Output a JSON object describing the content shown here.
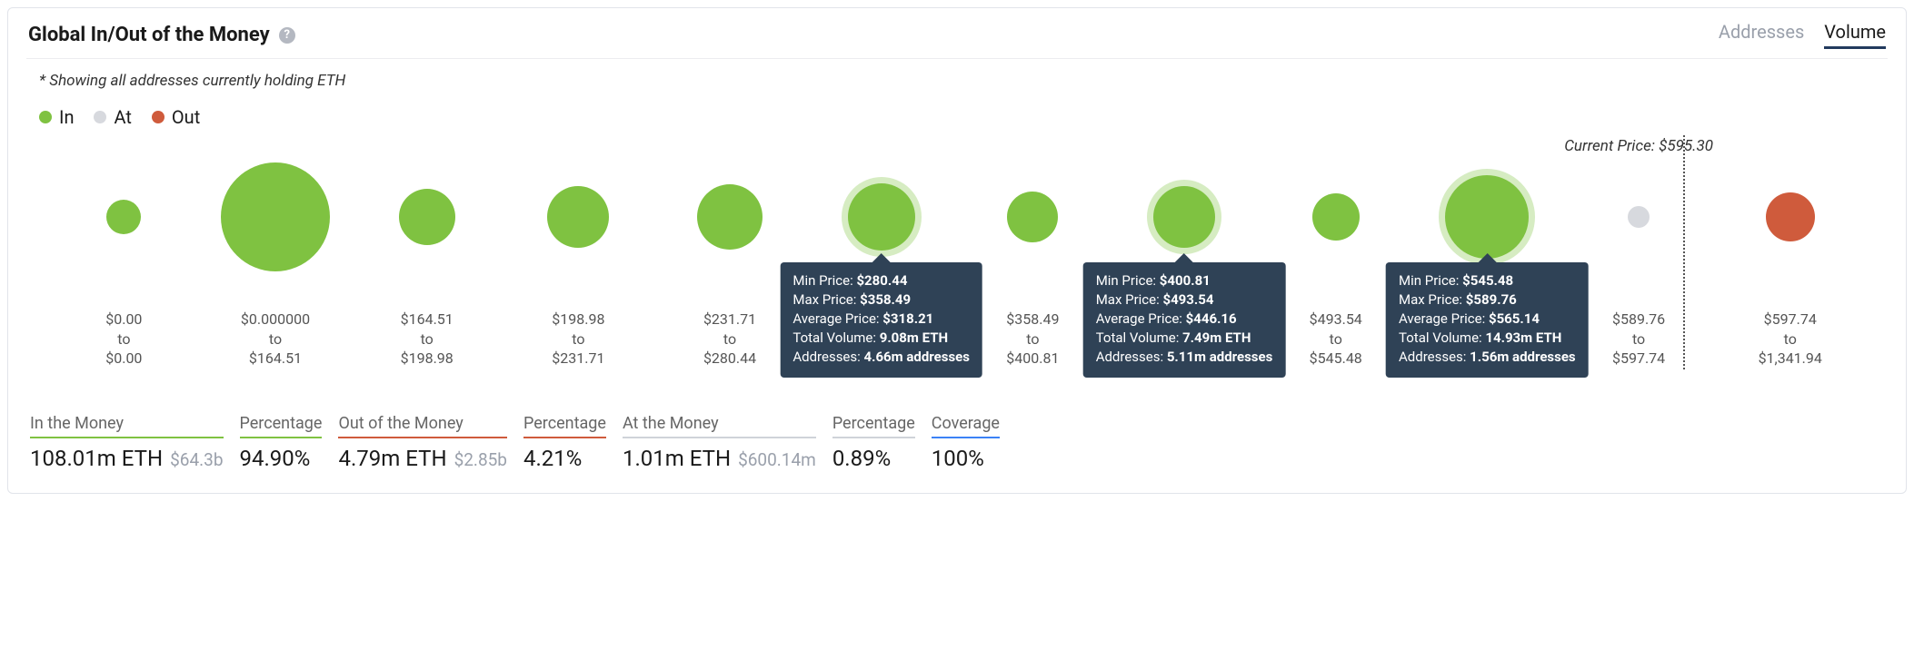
{
  "title": "Global In/Out of the Money",
  "subtitle": "* Showing all addresses currently holding ETH",
  "tabs": {
    "addresses": "Addresses",
    "volume": "Volume"
  },
  "legend": {
    "in": {
      "label": "In",
      "color": "#7fc241"
    },
    "at": {
      "label": "At",
      "color": "#d7d9de"
    },
    "out": {
      "label": "Out",
      "color": "#cf5b3c"
    }
  },
  "colors": {
    "tooltip_bg": "#2f4256",
    "halo": "#d6ecc2",
    "underline_in": "#7fc241",
    "underline_out": "#cf5b3c",
    "underline_at": "#cfd3d9",
    "underline_cov": "#3b82f6"
  },
  "current_price_label": "Current Price: $595.30",
  "chart": {
    "vline_left_pct": 89.1,
    "bubble_area_height": 160,
    "max_diameter": 120,
    "buckets": [
      {
        "from": "$0.00",
        "to_word": "to",
        "to": "$0.00",
        "diameter": 38,
        "category": "in",
        "halo": false
      },
      {
        "from": "$0.000000",
        "to_word": "to",
        "to": "$164.51",
        "diameter": 120,
        "category": "in",
        "halo": false
      },
      {
        "from": "$164.51",
        "to_word": "to",
        "to": "$198.98",
        "diameter": 62,
        "category": "in",
        "halo": false
      },
      {
        "from": "$198.98",
        "to_word": "to",
        "to": "$231.71",
        "diameter": 68,
        "category": "in",
        "halo": false
      },
      {
        "from": "$231.71",
        "to_word": "to",
        "to": "$280.44",
        "diameter": 72,
        "category": "in",
        "halo": false
      },
      {
        "from": "$280.44",
        "to_word": "to",
        "to": "$358.49",
        "diameter": 74,
        "category": "in",
        "halo": true,
        "tooltip": {
          "min": "$280.44",
          "max": "$358.49",
          "avg": "$318.21",
          "vol": "9.08m ETH",
          "addr": "4.66m addresses"
        }
      },
      {
        "from": "$358.49",
        "to_word": "to",
        "to": "$400.81",
        "diameter": 56,
        "category": "in",
        "halo": false
      },
      {
        "from": "$400.81",
        "to_word": "to",
        "to": "$493.54",
        "diameter": 68,
        "category": "in",
        "halo": true,
        "tooltip": {
          "min": "$400.81",
          "max": "$493.54",
          "avg": "$446.16",
          "vol": "7.49m ETH",
          "addr": "5.11m addresses"
        }
      },
      {
        "from": "$493.54",
        "to_word": "to",
        "to": "$545.48",
        "diameter": 52,
        "category": "in",
        "halo": false
      },
      {
        "from": "$545.48",
        "to_word": "to",
        "to": "$589.76",
        "diameter": 92,
        "category": "in",
        "halo": true,
        "tooltip": {
          "min": "$545.48",
          "max": "$589.76",
          "avg": "$565.14",
          "vol": "14.93m ETH",
          "addr": "1.56m addresses"
        }
      },
      {
        "from": "$589.76",
        "to_word": "to",
        "to": "$597.74",
        "diameter": 24,
        "category": "at",
        "halo": false
      },
      {
        "from": "$597.74",
        "to_word": "to",
        "to": "$1,341.94",
        "diameter": 54,
        "category": "out",
        "halo": false
      }
    ]
  },
  "tooltip_labels": {
    "min": "Min Price: ",
    "max": "Max Price: ",
    "avg": "Average Price: ",
    "vol": "Total Volume: ",
    "addr": "Addresses: "
  },
  "stats": [
    {
      "label": "In the Money",
      "value": "108.01m ETH",
      "sub": "$64.3b",
      "underline": "underline_in"
    },
    {
      "label": "Percentage",
      "value": "94.90%",
      "sub": "",
      "underline": "underline_in"
    },
    {
      "label": "Out of the Money",
      "value": "4.79m ETH",
      "sub": "$2.85b",
      "underline": "underline_out"
    },
    {
      "label": "Percentage",
      "value": "4.21%",
      "sub": "",
      "underline": "underline_out"
    },
    {
      "label": "At the Money",
      "value": "1.01m ETH",
      "sub": "$600.14m",
      "underline": "underline_at"
    },
    {
      "label": "Percentage",
      "value": "0.89%",
      "sub": "",
      "underline": "underline_at"
    },
    {
      "label": "Coverage",
      "value": "100%",
      "sub": "",
      "underline": "underline_cov"
    }
  ]
}
